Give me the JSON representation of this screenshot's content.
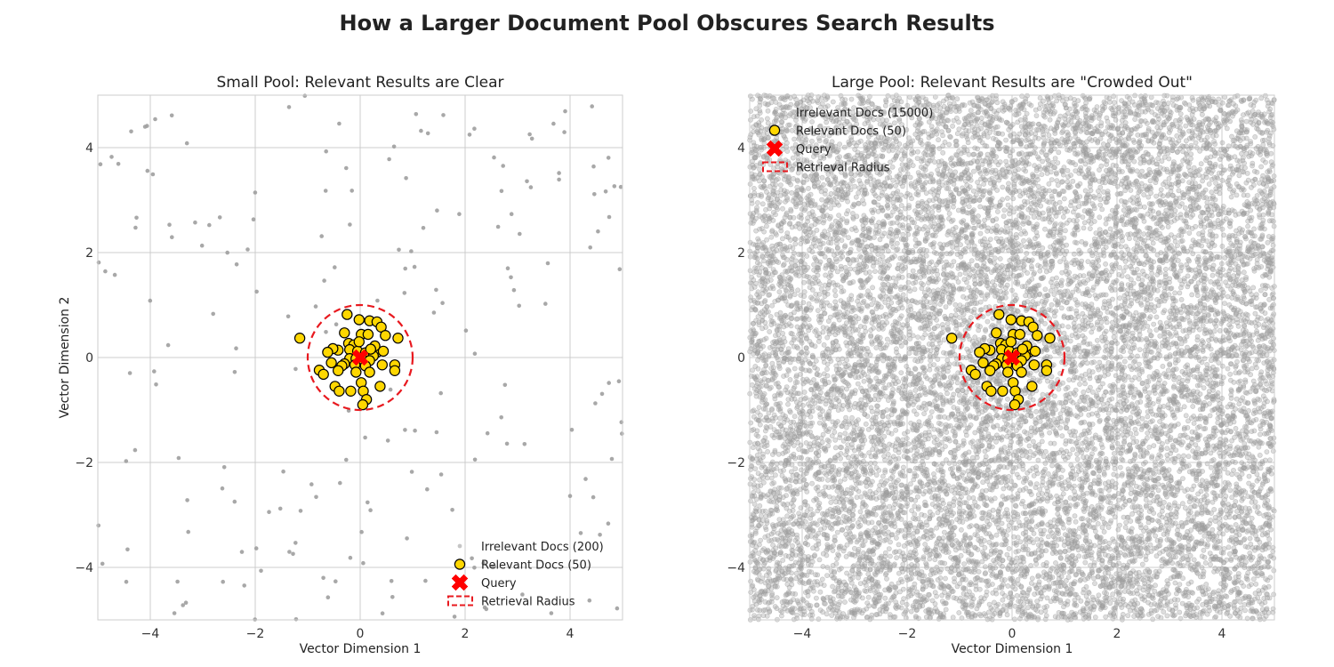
{
  "figure": {
    "title": "How a Larger Document Pool Obscures Search Results"
  },
  "colors": {
    "irrelevant": "#9e9e9e",
    "relevant_fill": "#ffd700",
    "relevant_edge": "#000000",
    "query": "#ff0000",
    "radius": "#e8191f",
    "grid": "#cccccc"
  },
  "chart_data": [
    {
      "type": "scatter",
      "title": "Small Pool: Relevant Results are Clear",
      "xlabel": "Vector Dimension 1",
      "ylabel": "Vector Dimension 2",
      "xlim": [
        -5,
        5
      ],
      "ylim": [
        -5,
        5
      ],
      "xticks": [
        "−4",
        "−2",
        "0",
        "2",
        "4"
      ],
      "yticks": [
        "−4",
        "−2",
        "0",
        "2",
        "4"
      ],
      "grid": true,
      "legend_position": "lower-right",
      "series": [
        {
          "name": "Irrelevant Docs (200)",
          "kind": "irrelevant",
          "count": 200,
          "distribution": "uniform",
          "range": [
            -5,
            5
          ]
        },
        {
          "name": "Relevant Docs (50)",
          "kind": "relevant",
          "count": 50,
          "center": [
            0,
            0
          ],
          "spread": 0.45
        },
        {
          "name": "Query",
          "kind": "query",
          "points": [
            [
              0,
              0
            ]
          ]
        },
        {
          "name": "Retrieval Radius",
          "kind": "radius",
          "center": [
            0,
            0
          ],
          "radius": 1.0
        }
      ]
    },
    {
      "type": "scatter",
      "title": "Large Pool: Relevant Results are \"Crowded Out\"",
      "xlabel": "Vector Dimension 1",
      "ylabel": "",
      "xlim": [
        -5,
        5
      ],
      "ylim": [
        -5,
        5
      ],
      "xticks": [
        "−4",
        "−2",
        "0",
        "2",
        "4"
      ],
      "yticks": [
        "−4",
        "−2",
        "0",
        "2",
        "4"
      ],
      "grid": true,
      "legend_position": "upper-left",
      "series": [
        {
          "name": "Irrelevant Docs (15000)",
          "kind": "irrelevant",
          "count": 15000,
          "distribution": "uniform",
          "range": [
            -5,
            5
          ]
        },
        {
          "name": "Relevant Docs (50)",
          "kind": "relevant",
          "count": 50,
          "center": [
            0,
            0
          ],
          "spread": 0.45
        },
        {
          "name": "Query",
          "kind": "query",
          "points": [
            [
              0,
              0
            ]
          ]
        },
        {
          "name": "Retrieval Radius",
          "kind": "radius",
          "center": [
            0,
            0
          ],
          "radius": 1.0
        }
      ]
    }
  ],
  "relevant_points": [
    [
      -1.15,
      0.37
    ],
    [
      -0.25,
      0.82
    ],
    [
      -0.02,
      0.72
    ],
    [
      0.18,
      0.7
    ],
    [
      0.32,
      0.68
    ],
    [
      0.4,
      0.58
    ],
    [
      -0.3,
      0.47
    ],
    [
      0.02,
      0.44
    ],
    [
      0.15,
      0.44
    ],
    [
      0.48,
      0.42
    ],
    [
      0.72,
      0.37
    ],
    [
      -0.22,
      0.27
    ],
    [
      -0.12,
      0.24
    ],
    [
      -0.2,
      0.15
    ],
    [
      -0.42,
      0.14
    ],
    [
      -0.52,
      0.17
    ],
    [
      -0.62,
      0.1
    ],
    [
      -0.05,
      0.12
    ],
    [
      0.1,
      0.09
    ],
    [
      0.32,
      0.1
    ],
    [
      0.44,
      0.12
    ],
    [
      0.25,
      0.03
    ],
    [
      -0.2,
      -0.02
    ],
    [
      -0.08,
      -0.02
    ],
    [
      0.05,
      -0.04
    ],
    [
      0.18,
      -0.06
    ],
    [
      -0.3,
      -0.12
    ],
    [
      -0.35,
      -0.16
    ],
    [
      -0.1,
      -0.14
    ],
    [
      0.1,
      -0.16
    ],
    [
      0.42,
      -0.14
    ],
    [
      -0.78,
      -0.24
    ],
    [
      -0.7,
      -0.32
    ],
    [
      0.18,
      -0.28
    ],
    [
      0.66,
      -0.14
    ],
    [
      0.66,
      -0.25
    ],
    [
      -0.42,
      -0.25
    ],
    [
      -0.08,
      -0.28
    ],
    [
      0.02,
      -0.48
    ],
    [
      0.38,
      -0.55
    ],
    [
      -0.48,
      -0.55
    ],
    [
      -0.18,
      -0.64
    ],
    [
      -0.4,
      -0.64
    ],
    [
      0.06,
      -0.64
    ],
    [
      0.12,
      -0.8
    ],
    [
      0.05,
      -0.9
    ],
    [
      -0.55,
      -0.1
    ],
    [
      0.28,
      0.22
    ],
    [
      -0.02,
      0.3
    ],
    [
      0.2,
      0.16
    ]
  ],
  "legends": {
    "small": [
      "Irrelevant Docs (200)",
      "Relevant Docs (50)",
      "Query",
      "Retrieval Radius"
    ],
    "large": [
      "Irrelevant Docs (15000)",
      "Relevant Docs (50)",
      "Query",
      "Retrieval Radius"
    ]
  }
}
